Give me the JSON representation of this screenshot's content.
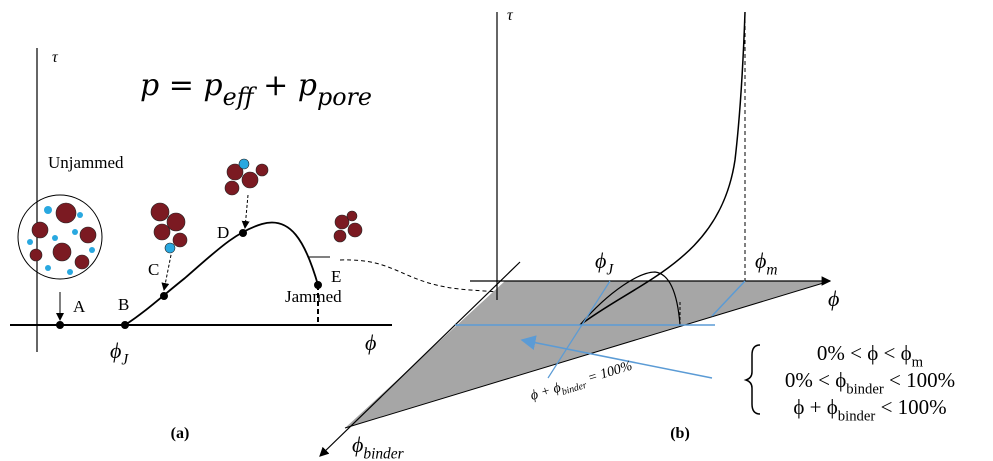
{
  "panel_a": {
    "tau": "τ",
    "equation": [
      {
        "text": "p = p"
      },
      {
        "text": "eff",
        "sub": true
      },
      {
        "text": " + p"
      },
      {
        "text": "pore",
        "sub": true
      }
    ],
    "unjammed": "Unjammed",
    "jammed": "Jammed",
    "points": [
      "A",
      "B",
      "C",
      "D",
      "E"
    ],
    "phi_j": [
      {
        "text": "ϕ"
      },
      {
        "text": "J",
        "sub": true
      }
    ],
    "phi": "ϕ",
    "caption": "(a)"
  },
  "panel_b": {
    "tau": "τ",
    "phi_j": [
      {
        "text": "ϕ"
      },
      {
        "text": "J",
        "sub": true
      }
    ],
    "phi_m": [
      {
        "text": "ϕ"
      },
      {
        "text": "m",
        "sub": true
      }
    ],
    "phi": "ϕ",
    "phi_binder": [
      {
        "text": "ϕ"
      },
      {
        "text": "binder",
        "sub": true
      }
    ],
    "line_label": [
      {
        "text": "ϕ + ϕ"
      },
      {
        "text": "binder",
        "sub": true
      },
      {
        "text": " = 100%"
      }
    ],
    "conditions": [
      [
        {
          "text": "0% < ϕ < ϕ"
        },
        {
          "text": "m",
          "sub": true
        }
      ],
      [
        {
          "text": "0% < ϕ"
        },
        {
          "text": "binder",
          "sub": true
        },
        {
          "text": " < 100%"
        }
      ],
      [
        {
          "text": "ϕ + ϕ"
        },
        {
          "text": "binder",
          "sub": true
        },
        {
          "text": " < 100%"
        }
      ]
    ],
    "caption": "(b)"
  }
}
